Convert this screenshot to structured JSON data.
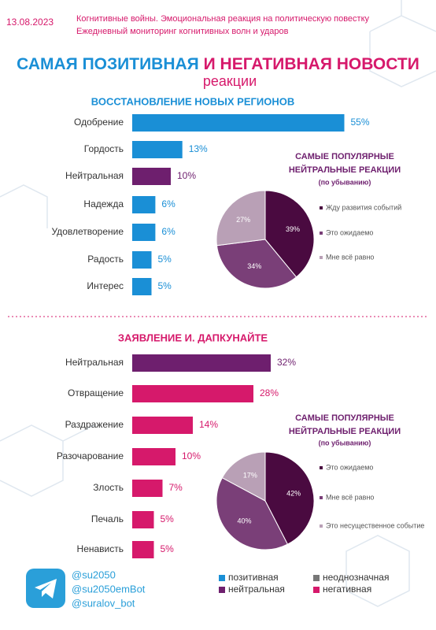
{
  "header": {
    "date": "13.08.2023",
    "subtitle": [
      "Когнитивные войны. Эмоциональная реакция на политическую повестку",
      "Ежедневный мониторинг когнитивных волн и ударов"
    ],
    "title": [
      "САМАЯ ПОЗИТИВНАЯ",
      "И НЕГАТИВНАЯ НОВОСТИ"
    ],
    "title_sub": "реакции"
  },
  "chart_data": [
    {
      "type": "bar",
      "title": "ВОССТАНОВЛЕНИЕ НОВЫХ РЕГИОНОВ",
      "categories": [
        "Одобрение",
        "Гордость",
        "Нейтральная",
        "Надежда",
        "Удовлетворение",
        "Радость",
        "Интерес"
      ],
      "values": [
        55,
        13,
        10,
        6,
        6,
        5,
        5
      ],
      "value_labels": [
        "55%",
        "13%",
        "10%",
        "6%",
        "6%",
        "5%",
        "5%"
      ],
      "colors": [
        "#1a8fd6",
        "#1a8fd6",
        "#6e1f6e",
        "#1a8fd6",
        "#1a8fd6",
        "#1a8fd6",
        "#1a8fd6"
      ]
    },
    {
      "type": "pie",
      "title": [
        "САМЫЕ ПОПУЛЯРНЫЕ",
        "НЕЙТРАЛЬНЫЕ РЕАКЦИИ"
      ],
      "subtitle": "(по убыванию)",
      "categories": [
        "Жду развития событий",
        "Это ожидаемо",
        "Мне всё равно"
      ],
      "values": [
        39,
        34,
        27
      ],
      "value_labels": [
        "39%",
        "34%",
        "27%"
      ],
      "colors": [
        "#4a0a40",
        "#7a3f78",
        "#b9a0b6"
      ]
    },
    {
      "type": "bar",
      "title": "ЗАЯВЛЕНИЕ И. ДАПКУНАЙТЕ",
      "categories": [
        "Нейтральная",
        "Отвращение",
        "Раздражение",
        "Разочарование",
        "Злость",
        "Печаль",
        "Ненависть"
      ],
      "values": [
        32,
        28,
        14,
        10,
        7,
        5,
        5
      ],
      "value_labels": [
        "32%",
        "28%",
        "14%",
        "10%",
        "7%",
        "5%",
        "5%"
      ],
      "colors": [
        "#6e1f6e",
        "#d6196b",
        "#d6196b",
        "#d6196b",
        "#d6196b",
        "#d6196b",
        "#d6196b"
      ]
    },
    {
      "type": "pie",
      "title": [
        "САМЫЕ ПОПУЛЯРНЫЕ",
        "НЕЙТРАЛЬНЫЕ РЕАКЦИИ"
      ],
      "subtitle": "(по убыванию)",
      "categories": [
        "Это ожидаемо",
        "Мне всё равно",
        "Это несущественное событие"
      ],
      "values": [
        42,
        40,
        17
      ],
      "value_labels": [
        "42%",
        "40%",
        "17%"
      ],
      "colors": [
        "#4a0a40",
        "#7a3f78",
        "#b9a0b6"
      ]
    }
  ],
  "legend": [
    {
      "name": "позитивная",
      "color": "#1a8fd6"
    },
    {
      "name": "неоднозначная",
      "color": "#777777"
    },
    {
      "name": "нейтральная",
      "color": "#6e1f6e"
    },
    {
      "name": "негативная",
      "color": "#d6196b"
    }
  ],
  "footer": {
    "handles": [
      "@su2050",
      "@su2050emBot",
      "@suralov_bot"
    ]
  }
}
